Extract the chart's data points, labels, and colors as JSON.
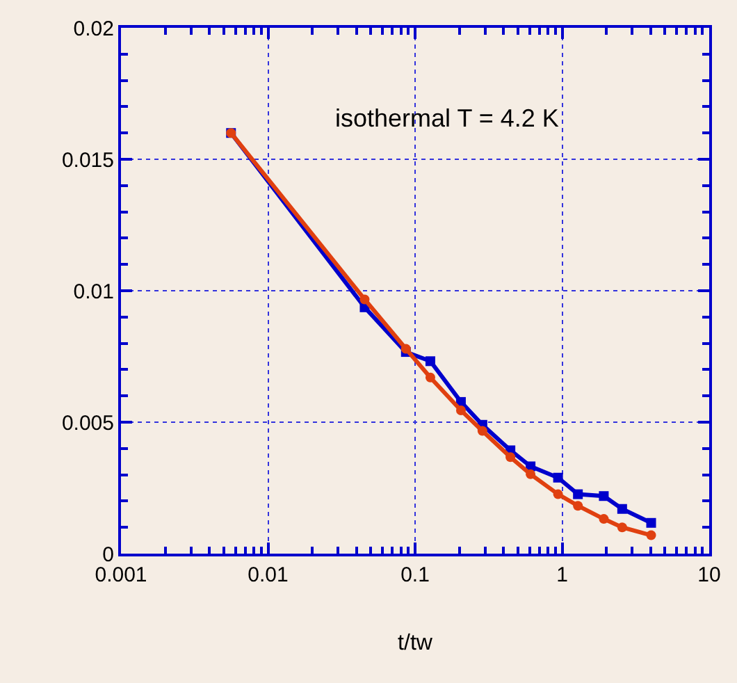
{
  "chart_data": {
    "type": "line",
    "xlabel": "t/tw",
    "log": "x",
    "grid": true,
    "line_style": "solid",
    "xlim": [
      0.001,
      10
    ],
    "xticks": [
      0.001,
      0.01,
      0.1,
      1,
      10
    ],
    "ylim": [
      0,
      0.02
    ],
    "yticks": [
      0,
      0.005,
      0.01,
      0.015,
      0.02
    ],
    "annotations": [
      "isothermal T = 4.2 K"
    ],
    "series": [
      {
        "color": "#0000cc",
        "marker": "square",
        "x": [
          0.0056,
          0.0454,
          0.0866,
          0.127,
          0.205,
          0.287,
          0.445,
          0.61,
          0.938,
          1.28,
          1.92,
          2.56,
          4.03
        ],
        "values": [
          0.016,
          0.00937,
          0.00767,
          0.00732,
          0.00577,
          0.0049,
          0.00393,
          0.00332,
          0.00289,
          0.00226,
          0.00219,
          0.0017,
          0.00117
        ]
      },
      {
        "color": "#e04010",
        "marker": "circle",
        "x": [
          0.0056,
          0.0454,
          0.0866,
          0.127,
          0.205,
          0.287,
          0.445,
          0.61,
          0.938,
          1.28,
          1.92,
          2.56,
          4.03
        ],
        "values": [
          0.016,
          0.00967,
          0.00779,
          0.0067,
          0.00545,
          0.00467,
          0.00367,
          0.00302,
          0.00226,
          0.00182,
          0.00132,
          0.001,
          0.0007
        ]
      }
    ]
  }
}
